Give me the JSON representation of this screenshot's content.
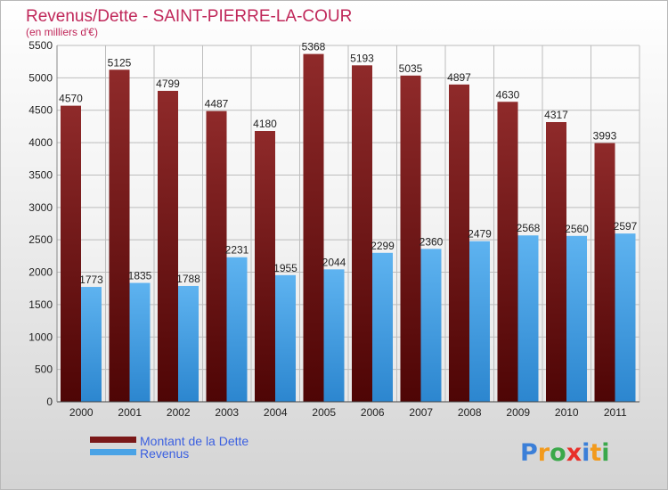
{
  "chart_data": {
    "type": "bar",
    "title": "Revenus/Dette - SAINT-PIERRE-LA-COUR",
    "subtitle": "(en milliers d'€)",
    "xlabel": "",
    "ylabel": "",
    "ylim": [
      0,
      5500
    ],
    "ytick_step": 500,
    "grid": true,
    "categories": [
      "2000",
      "2001",
      "2002",
      "2003",
      "2004",
      "2005",
      "2006",
      "2007",
      "2008",
      "2009",
      "2010",
      "2011"
    ],
    "series": [
      {
        "name": "Montant de la Dette",
        "color": "#7a1818",
        "values": [
          4570,
          5125,
          4799,
          4487,
          4180,
          5368,
          5193,
          5035,
          4897,
          4630,
          4317,
          3993
        ]
      },
      {
        "name": "Revenus",
        "color": "#4aa3e6",
        "values": [
          1773,
          1835,
          1788,
          2231,
          1955,
          2044,
          2299,
          2360,
          2479,
          2568,
          2560,
          2597
        ]
      }
    ],
    "legend_position": "bottom-left"
  },
  "logo": {
    "letters": [
      {
        "ch": "P",
        "color": "#3b7fd8"
      },
      {
        "ch": "r",
        "color": "#f29a1c"
      },
      {
        "ch": "o",
        "color": "#3aa84a"
      },
      {
        "ch": "x",
        "color": "#e8302a"
      },
      {
        "ch": "i",
        "color": "#3b7fd8"
      },
      {
        "ch": "t",
        "color": "#f29a1c"
      },
      {
        "ch": "i",
        "color": "#3aa84a"
      }
    ]
  }
}
